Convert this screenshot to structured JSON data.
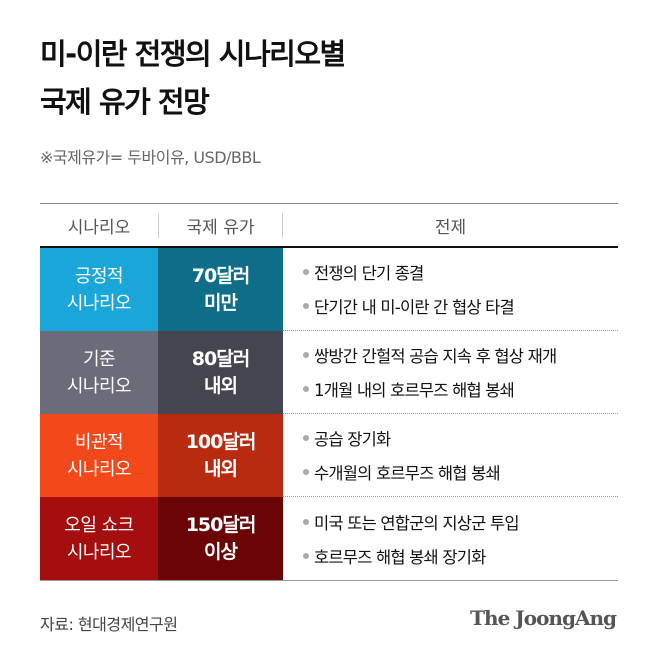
{
  "title": {
    "line1": "미-이란 전쟁의 시나리오별",
    "line2": "국제 유가 전망"
  },
  "subtitle": "※국제유가= 두바이유, USD/BBL",
  "table": {
    "headers": [
      "시나리오",
      "국제 유가",
      "전제"
    ],
    "rows": [
      {
        "scenario": "긍정적\n시나리오",
        "price": "70달러\n미만",
        "premises": [
          "전쟁의 단기 종결",
          "단기간 내 미-이란 간 협상 타결"
        ],
        "color1": "#1ba6d9",
        "color2": "#0e6d88"
      },
      {
        "scenario": "기준\n시나리오",
        "price": "80달러\n내외",
        "premises": [
          "쌍방간 간헐적 공습 지속 후 협상 재개",
          "1개월 내의 호르무즈 해협 봉쇄"
        ],
        "color1": "#6b6b79",
        "color2": "#45454f"
      },
      {
        "scenario": "비관적\n시나리오",
        "price": "100달러\n내외",
        "premises": [
          "공습 장기화",
          "수개월의 호르무즈 해협 봉쇄"
        ],
        "color1": "#f2481a",
        "color2": "#b82b10"
      },
      {
        "scenario": "오일 쇼크\n시나리오",
        "price": "150달러\n이상",
        "premises": [
          "미국 또는 연합군의 지상군 투입",
          "호르무즈 해협 봉쇄 장기화"
        ],
        "color1": "#a50e0e",
        "color2": "#6b0505"
      }
    ]
  },
  "footer": {
    "source": "자료: 현대경제연구원",
    "logo": "The JoongAng"
  }
}
